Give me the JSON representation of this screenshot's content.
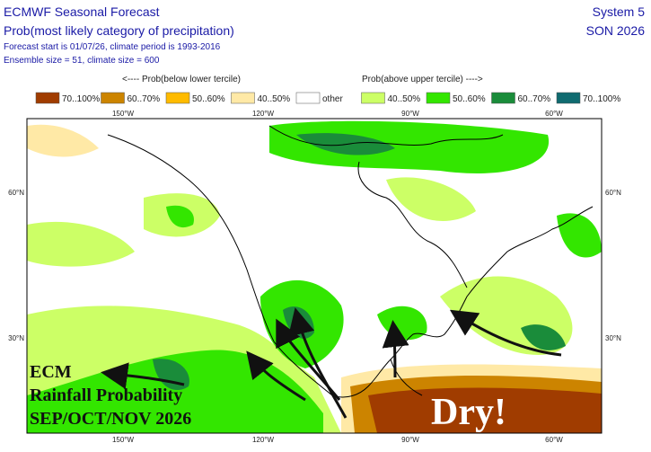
{
  "header": {
    "title": "ECMWF Seasonal Forecast",
    "subtitle": "Prob(most likely category of precipitation)",
    "info_1": "Forecast start is 01/07/26, climate period is 1993-2016",
    "info_2": "Ensemble size = 51, climate size = 600",
    "system": "System 5",
    "period": "SON 2026"
  },
  "legend": {
    "below_label": "<---- Prob(below lower tercile)",
    "above_label": "Prob(above upper tercile) ---->",
    "items": [
      {
        "label": "70..100%",
        "color": "#a03c00"
      },
      {
        "label": "60..70%",
        "color": "#cc8400"
      },
      {
        "label": "50..60%",
        "color": "#ffbb00"
      },
      {
        "label": "40..50%",
        "color": "#ffe9a6"
      },
      {
        "label": "other",
        "color": "#ffffff"
      },
      {
        "label": "40..50%",
        "color": "#ccff66"
      },
      {
        "label": "50..60%",
        "color": "#33e600"
      },
      {
        "label": "60..70%",
        "color": "#1a8c3a"
      },
      {
        "label": "70..100%",
        "color": "#106b70"
      }
    ]
  },
  "map": {
    "lon_labels": [
      "150°W",
      "120°W",
      "90°W",
      "60°W"
    ],
    "lat_labels": [
      "60°N",
      "30°N"
    ]
  },
  "annotations": {
    "ecm": [
      "ECM",
      "Rainfall Probability",
      "SEP/OCT/NOV 2026"
    ],
    "dry": "Dry!"
  }
}
